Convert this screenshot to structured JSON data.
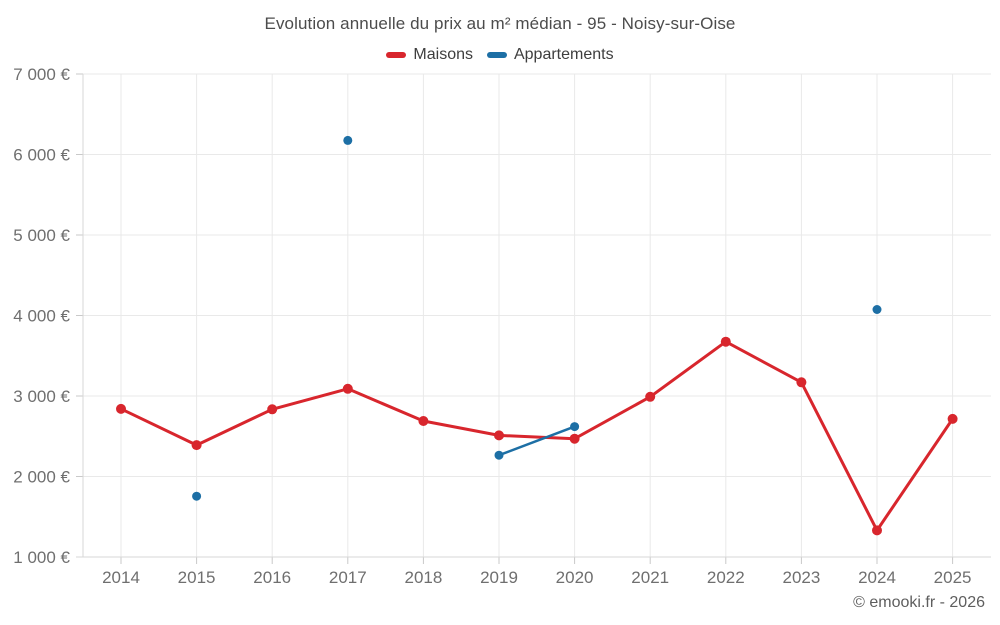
{
  "footer": {
    "credit": "© emooki.fr - 2026"
  },
  "chart_data": {
    "type": "line",
    "title": "Evolution annuelle du prix au m² médian - 95 - Noisy-sur-Oise",
    "categories": [
      "2014",
      "2015",
      "2016",
      "2017",
      "2018",
      "2019",
      "2020",
      "2021",
      "2022",
      "2023",
      "2024",
      "2025"
    ],
    "series": [
      {
        "name": "Maisons",
        "color": "#d8262d",
        "values": [
          2840,
          2390,
          2835,
          3090,
          2690,
          2510,
          2470,
          2990,
          3675,
          3170,
          1330,
          2715
        ]
      },
      {
        "name": "Appartements",
        "color": "#1d6fa5",
        "values": [
          null,
          1755,
          null,
          6175,
          null,
          2265,
          2620,
          null,
          null,
          null,
          4075,
          null
        ]
      }
    ],
    "ylabel": "",
    "xlabel": "",
    "ylim": [
      1000,
      7000
    ],
    "ytick_step": 1000,
    "ytick_labels": [
      "1 000 €",
      "2 000 €",
      "3 000 €",
      "4 000 €",
      "5 000 €",
      "6 000 €",
      "7 000 €"
    ],
    "currency": "€",
    "grid": true,
    "legend_position": "top"
  }
}
